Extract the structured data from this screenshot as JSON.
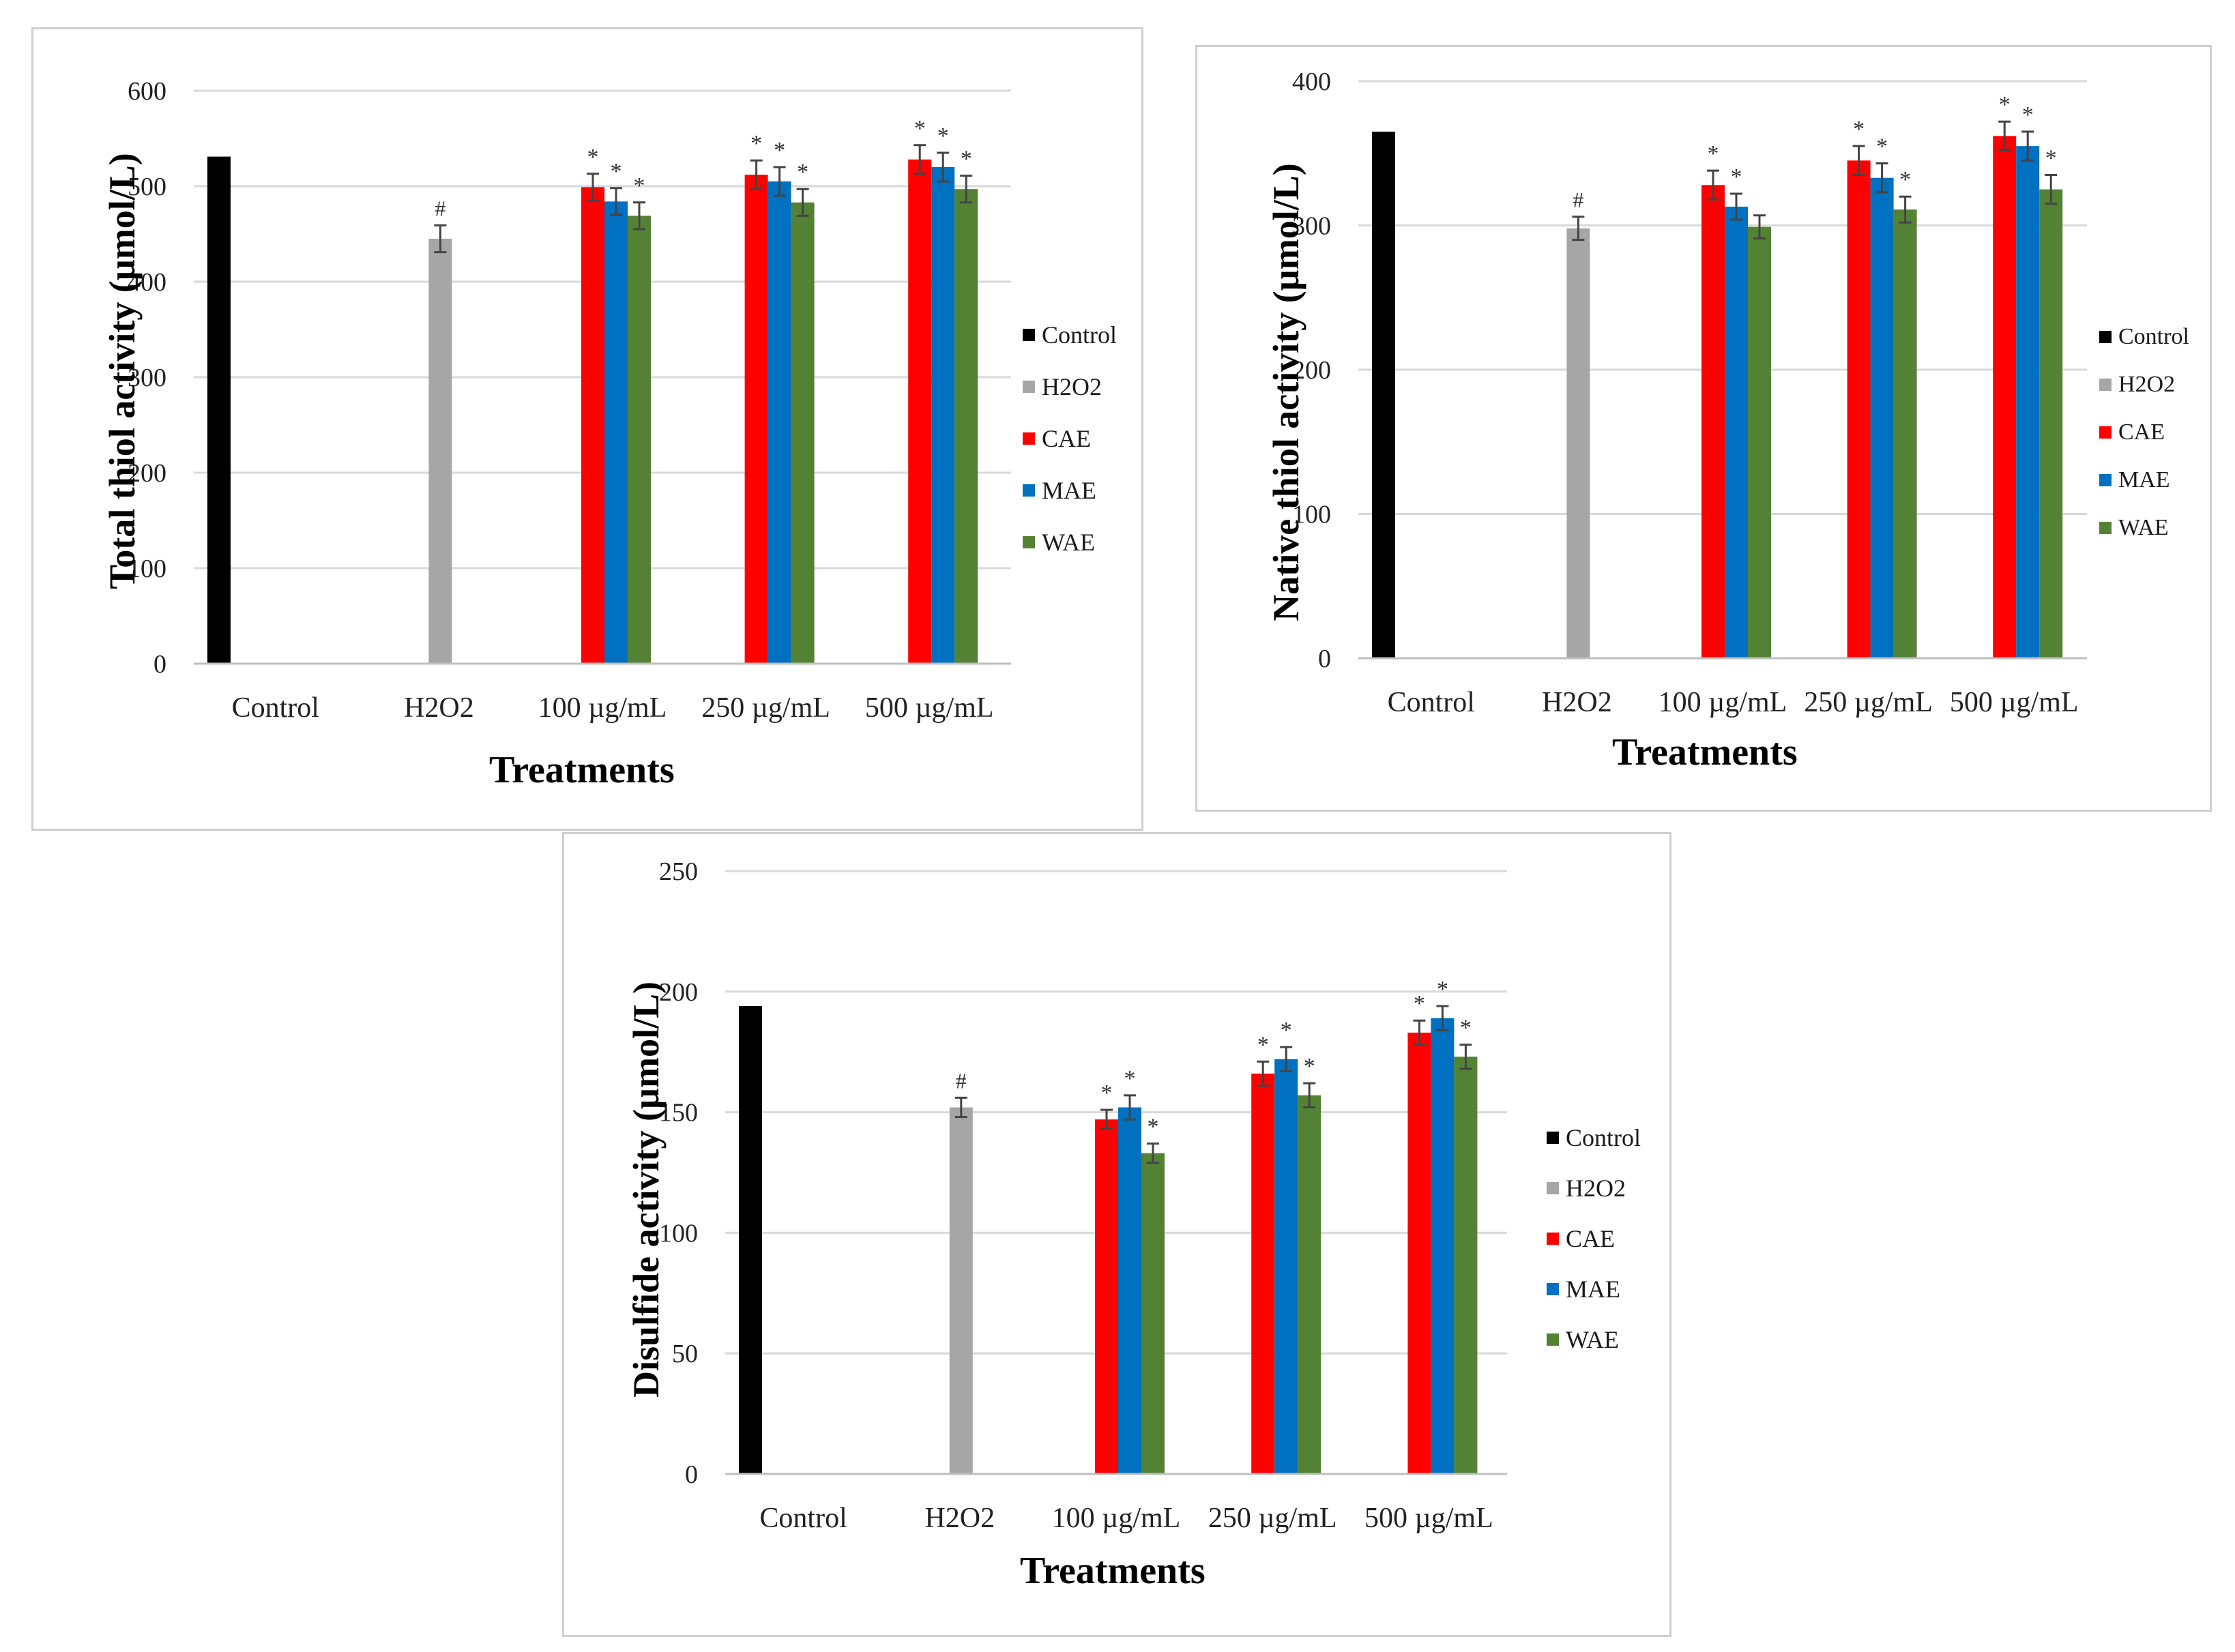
{
  "colors": {
    "Control": "#000000",
    "H2O2": "#a6a6a6",
    "CAE": "#ff0000",
    "MAE": "#0070c0",
    "WAE": "#548235"
  },
  "legend_entries": [
    "Control",
    "H2O2",
    "CAE",
    "MAE",
    "WAE"
  ],
  "chart_data": [
    {
      "type": "bar",
      "title": "",
      "xlabel": "Treatments",
      "ylabel": "Total thiol activity (µmol/L)",
      "ylim": [
        0,
        600
      ],
      "yticks": [
        0,
        100,
        200,
        300,
        400,
        500,
        600
      ],
      "grid": true,
      "legend_position": "right",
      "categories": [
        "Control",
        "H2O2",
        "100 µg/mL",
        "250 µg/mL",
        "500 µg/mL"
      ],
      "series": [
        {
          "name": "Control",
          "values": [
            531,
            null,
            null,
            null,
            null
          ],
          "errors": [
            0,
            0,
            0,
            0,
            0
          ],
          "marks": [
            "",
            "",
            "",
            "",
            ""
          ]
        },
        {
          "name": "H2O2",
          "values": [
            null,
            445,
            null,
            null,
            null
          ],
          "errors": [
            0,
            14,
            0,
            0,
            0
          ],
          "marks": [
            "",
            "#",
            "",
            "",
            ""
          ]
        },
        {
          "name": "CAE",
          "values": [
            null,
            null,
            499,
            512,
            528
          ],
          "errors": [
            0,
            0,
            14,
            15,
            15
          ],
          "marks": [
            "",
            "",
            "*",
            "*",
            "*"
          ]
        },
        {
          "name": "MAE",
          "values": [
            null,
            null,
            484,
            505,
            520
          ],
          "errors": [
            0,
            0,
            14,
            15,
            15
          ],
          "marks": [
            "",
            "",
            "*",
            "*",
            "*"
          ]
        },
        {
          "name": "WAE",
          "values": [
            null,
            null,
            469,
            483,
            497
          ],
          "errors": [
            0,
            0,
            14,
            14,
            14
          ],
          "marks": [
            "",
            "",
            "*",
            "*",
            "*"
          ]
        }
      ]
    },
    {
      "type": "bar",
      "title": "",
      "xlabel": "Treatments",
      "ylabel": "Native thiol activity (µmol/L)",
      "ylim": [
        0,
        400
      ],
      "yticks": [
        0,
        100,
        200,
        300,
        400
      ],
      "grid": true,
      "legend_position": "right",
      "categories": [
        "Control",
        "H2O2",
        "100 µg/mL",
        "250 µg/mL",
        "500 µg/mL"
      ],
      "series": [
        {
          "name": "Control",
          "values": [
            365,
            null,
            null,
            null,
            null
          ],
          "errors": [
            0,
            0,
            0,
            0,
            0
          ],
          "marks": [
            "",
            "",
            "",
            "",
            ""
          ]
        },
        {
          "name": "H2O2",
          "values": [
            null,
            298,
            null,
            null,
            null
          ],
          "errors": [
            0,
            8,
            0,
            0,
            0
          ],
          "marks": [
            "",
            "#",
            "",
            "",
            ""
          ]
        },
        {
          "name": "CAE",
          "values": [
            null,
            null,
            328,
            345,
            362
          ],
          "errors": [
            0,
            0,
            10,
            10,
            10
          ],
          "marks": [
            "",
            "",
            "*",
            "*",
            "*"
          ]
        },
        {
          "name": "MAE",
          "values": [
            null,
            null,
            313,
            333,
            355
          ],
          "errors": [
            0,
            0,
            9,
            10,
            10
          ],
          "marks": [
            "",
            "",
            "*",
            "*",
            "*"
          ]
        },
        {
          "name": "WAE",
          "values": [
            null,
            null,
            299,
            311,
            325
          ],
          "errors": [
            0,
            0,
            8,
            9,
            10
          ],
          "marks": [
            "",
            "",
            "",
            "*",
            "*"
          ]
        }
      ]
    },
    {
      "type": "bar",
      "title": "",
      "xlabel": "Treatments",
      "ylabel": "Disulfide activity (µmol/L)",
      "ylim": [
        0,
        250
      ],
      "yticks": [
        0,
        50,
        100,
        150,
        200,
        250
      ],
      "grid": true,
      "legend_position": "right",
      "categories": [
        "Control",
        "H2O2",
        "100 µg/mL",
        "250 µg/mL",
        "500 µg/mL"
      ],
      "series": [
        {
          "name": "Control",
          "values": [
            194,
            null,
            null,
            null,
            null
          ],
          "errors": [
            0,
            0,
            0,
            0,
            0
          ],
          "marks": [
            "",
            "",
            "",
            "",
            ""
          ]
        },
        {
          "name": "H2O2",
          "values": [
            null,
            152,
            null,
            null,
            null
          ],
          "errors": [
            0,
            4,
            0,
            0,
            0
          ],
          "marks": [
            "",
            "#",
            "",
            "",
            ""
          ]
        },
        {
          "name": "CAE",
          "values": [
            null,
            null,
            147,
            166,
            183
          ],
          "errors": [
            0,
            0,
            4,
            5,
            5
          ],
          "marks": [
            "",
            "",
            "*",
            "*",
            "*"
          ]
        },
        {
          "name": "MAE",
          "values": [
            null,
            null,
            152,
            172,
            189
          ],
          "errors": [
            0,
            0,
            5,
            5,
            5
          ],
          "marks": [
            "",
            "",
            "*",
            "*",
            "*"
          ]
        },
        {
          "name": "WAE",
          "values": [
            null,
            null,
            133,
            157,
            173
          ],
          "errors": [
            0,
            0,
            4,
            5,
            5
          ],
          "marks": [
            "",
            "",
            "*",
            "*",
            "*"
          ]
        }
      ]
    }
  ]
}
